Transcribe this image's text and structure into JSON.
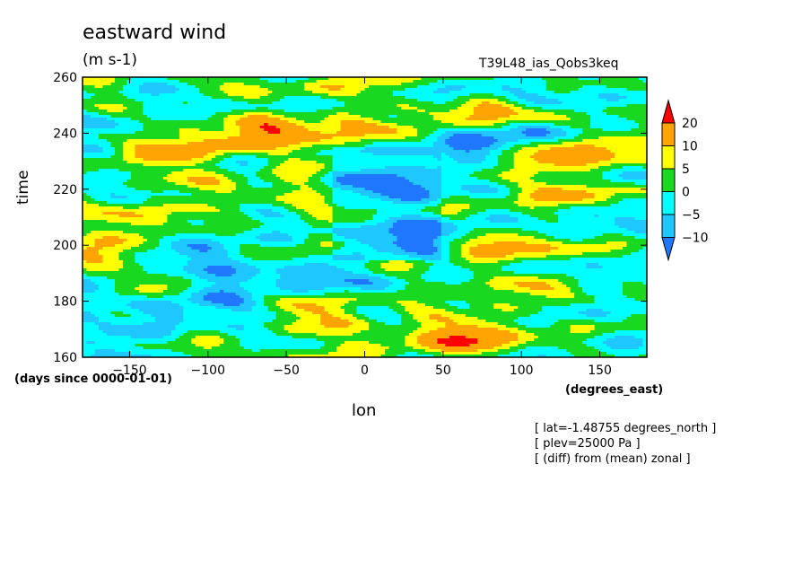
{
  "chart_data": {
    "type": "heatmap",
    "title": "eastward wind",
    "units": "(m s-1)",
    "run_label": "T39L48_ias_Qobs3keq",
    "xlabel": "lon",
    "xunits": "(degrees_east)",
    "ylabel": "time",
    "yunits": "(days since 0000-01-01)",
    "xlim": [
      -180,
      180
    ],
    "ylim": [
      160,
      260
    ],
    "x_ticks": [
      -150,
      -100,
      -50,
      0,
      50,
      100,
      150
    ],
    "y_ticks": [
      160,
      180,
      200,
      220,
      240,
      260
    ],
    "colorbar": {
      "levels": [
        -10,
        -5,
        0,
        5,
        10,
        20
      ],
      "colors": [
        "#1f78ff",
        "#1ec8ff",
        "#00ffff",
        "#18d820",
        "#ffff00",
        "#ffa400",
        "#ff0000"
      ],
      "extend": "both"
    },
    "notes": [
      "[ lat=-1.48755 degrees_north ]",
      "[ plev=25000 Pa ]",
      "[ (diff) from (mean) zonal ]"
    ]
  }
}
